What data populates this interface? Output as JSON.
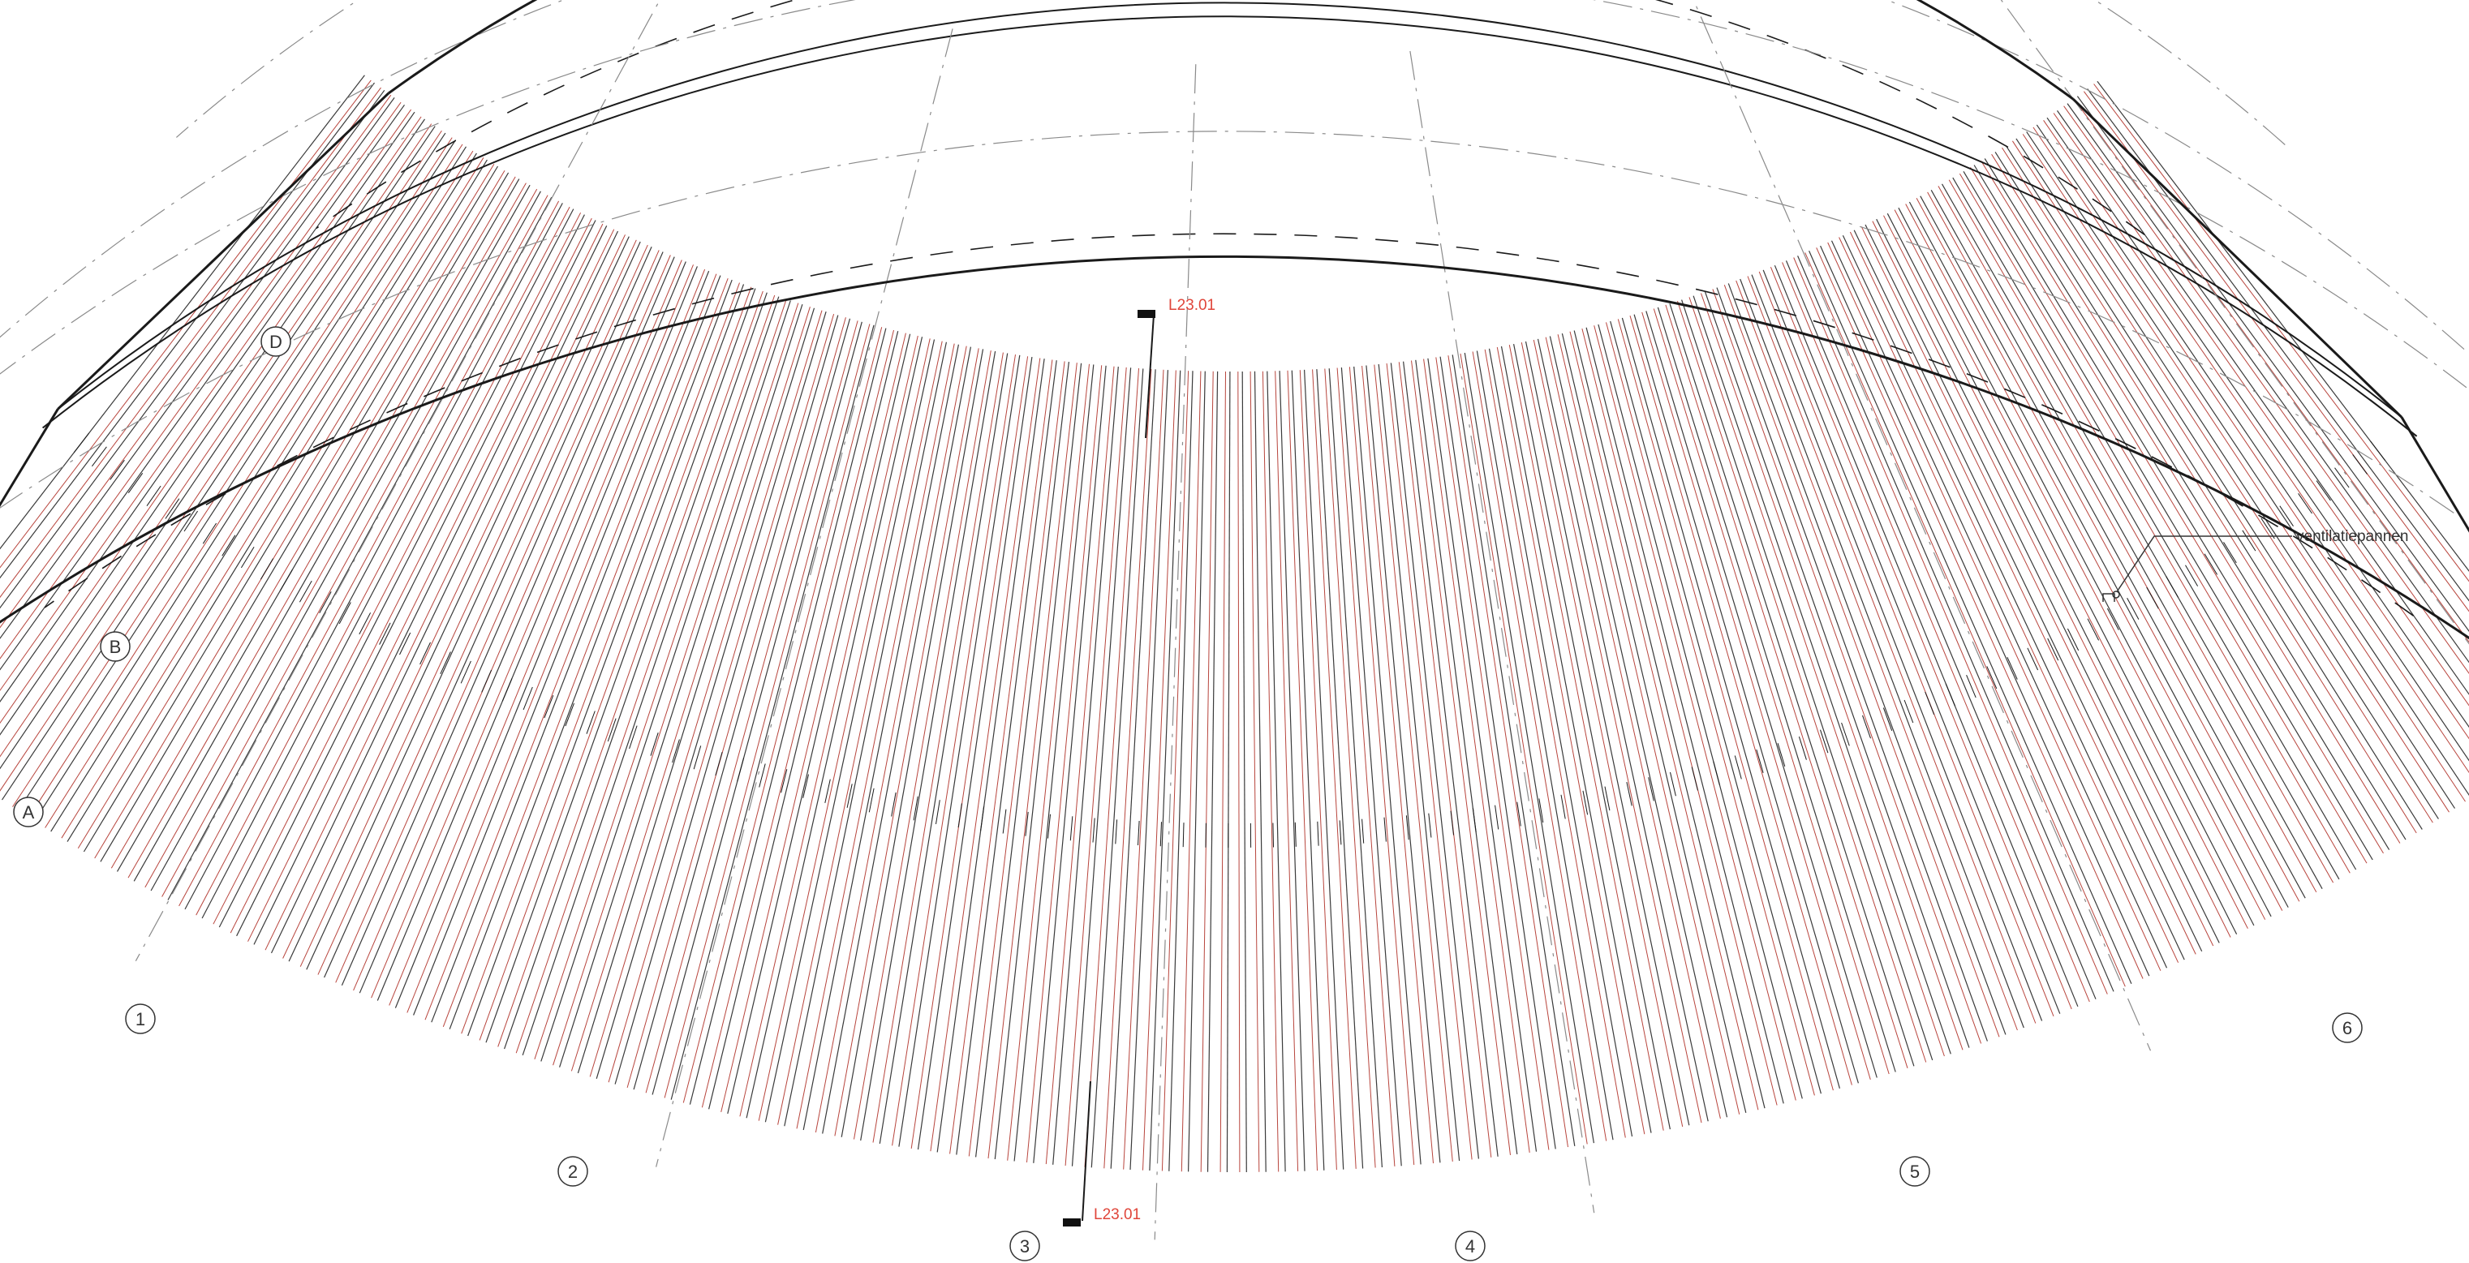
{
  "grid": {
    "radial": [
      "1",
      "2",
      "3",
      "4",
      "5",
      "6"
    ],
    "arcs": [
      "A",
      "B",
      "D"
    ]
  },
  "section_marks": {
    "top": "L23.01",
    "bottom": "L23.01"
  },
  "annotation": {
    "ventilation": "ventilatiepannen"
  },
  "colors": {
    "outline": "#1a1a1a",
    "tile_line": "#3a3a3a",
    "tile_accent": "#b8453d",
    "grid_line": "#8a8a8a",
    "section_text": "#e0453a"
  }
}
